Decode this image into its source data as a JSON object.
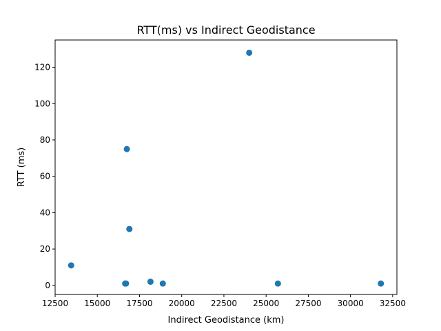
{
  "chart_data": {
    "type": "scatter",
    "title": "RTT(ms) vs Indirect Geodistance",
    "xlabel": "Indirect Geodistance (km)",
    "ylabel": "RTT (ms)",
    "xlim": [
      12500,
      32750
    ],
    "ylim": [
      -5,
      135
    ],
    "xticks": [
      12500,
      15000,
      17500,
      20000,
      22500,
      25000,
      27500,
      30000,
      32500
    ],
    "yticks": [
      0,
      20,
      40,
      60,
      80,
      100,
      120
    ],
    "grid": false,
    "marker_color": "#1f77b4",
    "points": [
      {
        "x": 13450,
        "y": 11
      },
      {
        "x": 16650,
        "y": 1
      },
      {
        "x": 16700,
        "y": 1
      },
      {
        "x": 16750,
        "y": 75
      },
      {
        "x": 16900,
        "y": 31
      },
      {
        "x": 18150,
        "y": 2
      },
      {
        "x": 18880,
        "y": 1
      },
      {
        "x": 24000,
        "y": 128
      },
      {
        "x": 25700,
        "y": 1
      },
      {
        "x": 31800,
        "y": 1
      }
    ]
  }
}
